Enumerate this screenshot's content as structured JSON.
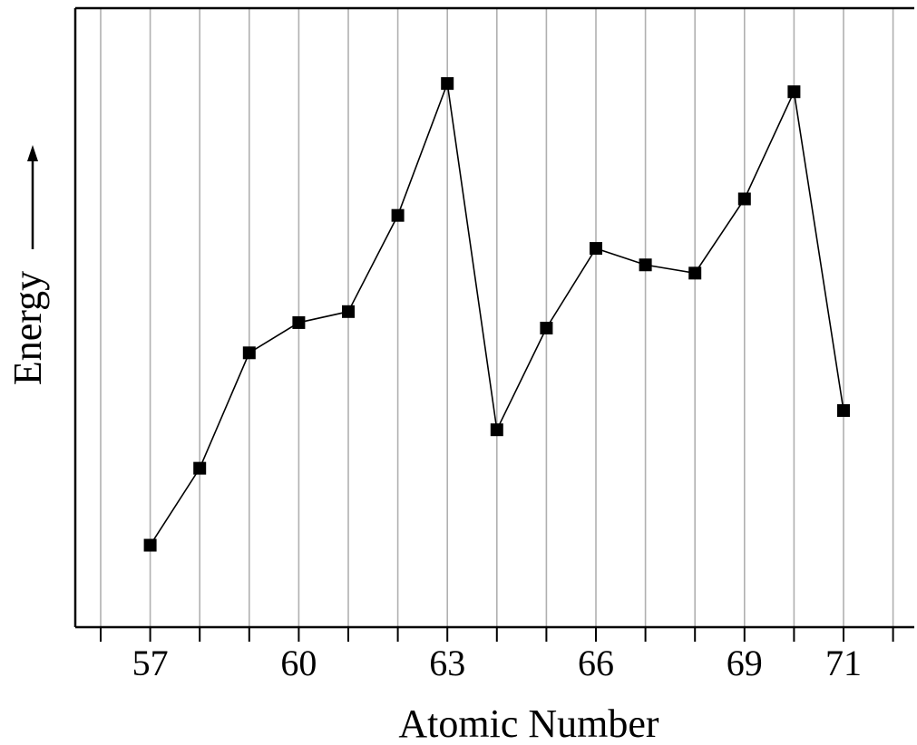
{
  "chart_data": {
    "type": "line",
    "title": "",
    "xlabel": "Atomic Number",
    "ylabel": "Energy",
    "xlim": [
      56,
      72
    ],
    "ylim": [
      0,
      100
    ],
    "grid": "vertical",
    "legend": "none",
    "x_ticks": [
      56,
      57,
      58,
      59,
      60,
      61,
      62,
      63,
      64,
      65,
      66,
      67,
      68,
      69,
      70,
      71,
      72
    ],
    "x_tick_labels": [
      {
        "x": 57,
        "label": "57"
      },
      {
        "x": 60,
        "label": "60"
      },
      {
        "x": 63,
        "label": "63"
      },
      {
        "x": 66,
        "label": "66"
      },
      {
        "x": 69,
        "label": "69"
      },
      {
        "x": 71,
        "label": "71"
      }
    ],
    "series": [
      {
        "line_connected_until": 70,
        "x": [
          57,
          58,
          59,
          60,
          61,
          62,
          63,
          64,
          65,
          66,
          67,
          68,
          69,
          70,
          71
        ],
        "y": [
          7,
          21,
          42,
          47.5,
          49.5,
          67,
          91,
          28,
          46.5,
          61,
          58,
          56.5,
          70,
          89.5,
          31.5
        ]
      }
    ],
    "colors": {
      "line": "#000000",
      "marker": "#000000",
      "grid": "#b0b0b0",
      "axis": "#000000"
    }
  }
}
